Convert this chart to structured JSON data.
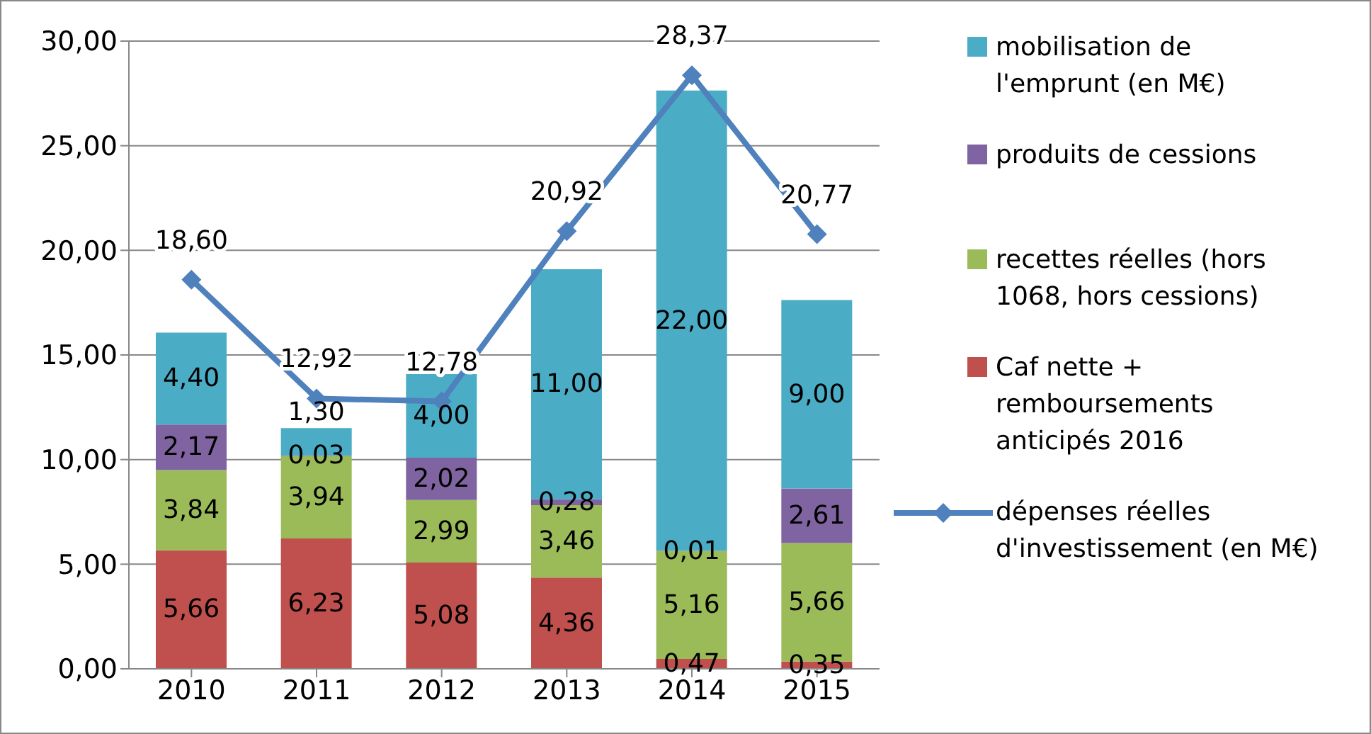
{
  "chart_data": {
    "type": "bar",
    "stacked": true,
    "categories": [
      "2010",
      "2011",
      "2012",
      "2013",
      "2014",
      "2015"
    ],
    "series": [
      {
        "name": "Caf nette + remboursements anticipés 2016",
        "color": "#c0504d",
        "values": [
          5.66,
          6.23,
          5.08,
          4.36,
          0.47,
          0.35
        ],
        "value_labels": [
          "5,66",
          "6,23",
          "5,08",
          "4,36",
          "0,47",
          "0,35"
        ]
      },
      {
        "name": "recettes réelles (hors 1068, hors cessions)",
        "color": "#9bbb59",
        "values": [
          3.84,
          3.94,
          2.99,
          3.46,
          5.16,
          5.66
        ],
        "value_labels": [
          "3,84",
          "3,94",
          "2,99",
          "3,46",
          "5,16",
          "5,66"
        ]
      },
      {
        "name": "produits de cessions",
        "color": "#8064a2",
        "values": [
          2.17,
          0.03,
          2.02,
          0.28,
          0.01,
          2.61
        ],
        "value_labels": [
          "2,17",
          "0,03",
          "2,02",
          "0,28",
          "0,01",
          "2,61"
        ]
      },
      {
        "name": "mobilisation de l'emprunt (en M€)",
        "color": "#4bacc6",
        "values": [
          4.4,
          1.3,
          4.0,
          11.0,
          22.0,
          9.0
        ],
        "value_labels": [
          "4,40",
          "1,30",
          "4,00",
          "11,00",
          "22,00",
          "9,00"
        ]
      },
      {
        "name": "dépenses réelles d'investissement (en M€)",
        "type": "line",
        "color": "#4f81bd",
        "values": [
          18.6,
          12.92,
          12.78,
          20.92,
          28.37,
          20.77
        ],
        "value_labels": [
          "18,60",
          "12,92",
          "12,78",
          "20,92",
          "28,37",
          "20,77"
        ],
        "marker": "diamond"
      }
    ],
    "ylim": [
      0,
      30
    ],
    "yticks": [
      {
        "value": 0,
        "label": "0,00"
      },
      {
        "value": 5,
        "label": "5,00"
      },
      {
        "value": 10,
        "label": "10,00"
      },
      {
        "value": 15,
        "label": "15,00"
      },
      {
        "value": 20,
        "label": "20,00"
      },
      {
        "value": 25,
        "label": "25,00"
      },
      {
        "value": 30,
        "label": "30,00"
      }
    ],
    "grid": "y",
    "legend": "right"
  }
}
